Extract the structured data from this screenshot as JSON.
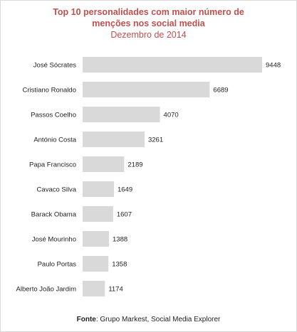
{
  "chart_data": {
    "type": "bar",
    "orientation": "horizontal",
    "title": "Top 10 personalidades com maior número de menções nos social media",
    "title_line1": "Top 10 personalidades com maior número de",
    "title_line2": "menções nos social media",
    "subtitle": "Dezembro de 2014",
    "categories": [
      "José Sócrates",
      "Cristiano Ronaldo",
      "Passos Coelho",
      "António Costa",
      "Papa Francisco",
      "Cavaco Silva",
      "Barack Obama",
      "José Mourinho",
      "Paulo Portas",
      "Alberto João Jardim"
    ],
    "values": [
      9448,
      6689,
      4070,
      3261,
      2189,
      1649,
      1607,
      1388,
      1358,
      1174
    ],
    "xlim": [
      0,
      9448
    ],
    "grid": false,
    "legend": "none",
    "bar_color": "#d9d9d9",
    "title_color": "#c0504d"
  },
  "source": {
    "label": "Fonte",
    "text": "Grupo Markest, Social Media Explorer"
  }
}
